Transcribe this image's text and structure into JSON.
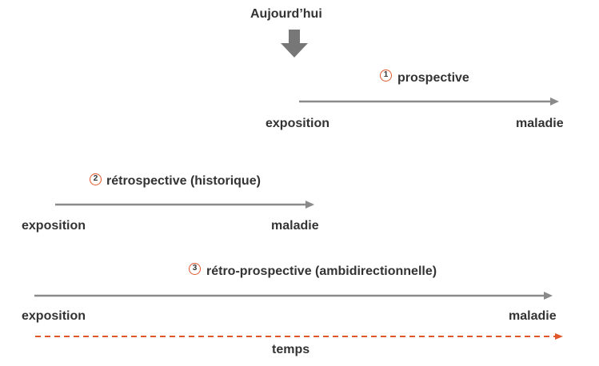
{
  "today_label": "Aujourd’hui",
  "colors": {
    "arrow": "#8a8a8a",
    "time_arrow": "#e0572b",
    "text": "#333333",
    "circle": "#e0572b"
  },
  "studies": [
    {
      "number": "1",
      "title": "prospective",
      "start_label": "exposition",
      "end_label": "maladie"
    },
    {
      "number": "2",
      "title": "rétrospective (historique)",
      "start_label": "exposition",
      "end_label": "maladie"
    },
    {
      "number": "3",
      "title": "rétro-prospective (ambidirectionnelle)",
      "start_label": "exposition",
      "end_label": "maladie"
    }
  ],
  "time_label": "temps"
}
